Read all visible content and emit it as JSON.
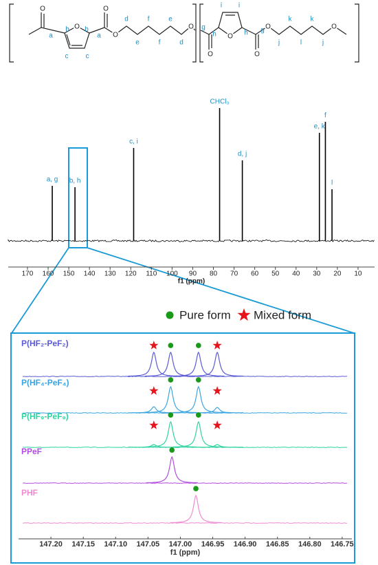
{
  "structure": {
    "labels": [
      "a",
      "b",
      "b",
      "c",
      "c",
      "a",
      "d",
      "f",
      "e",
      "e",
      "f",
      "d",
      "g",
      "i",
      "i",
      "h",
      "h",
      "g",
      "j",
      "k",
      "l",
      "k",
      "j"
    ],
    "atoms": [
      "O",
      "O",
      "O",
      "O",
      "O",
      "O",
      "O",
      "O",
      "O",
      "O"
    ]
  },
  "chart_data": [
    {
      "type": "nmr-stick",
      "xlabel": "f1 (ppm)",
      "xlim": [
        179.3,
        2
      ],
      "xticks": [
        170,
        160,
        150,
        140,
        130,
        120,
        110,
        100,
        90,
        80,
        70,
        60,
        50,
        40,
        30,
        20,
        10
      ],
      "ylim": [
        0,
        200
      ],
      "color": "#000000",
      "label_color": "#1a8fc9",
      "peaks": [
        {
          "label": "a, g",
          "position": 158,
          "height": 80
        },
        {
          "label": "b, h",
          "position": 147,
          "height": 78
        },
        {
          "label": "c, i",
          "position": 118.6,
          "height": 135
        },
        {
          "label": "CHCl₃",
          "position": 77,
          "height": 193
        },
        {
          "label": "d, j",
          "position": 66,
          "height": 117
        },
        {
          "label": "e, k",
          "position": 28.7,
          "height": 157
        },
        {
          "label": "f",
          "position": 25.8,
          "height": 173
        },
        {
          "label": "l",
          "position": 22.6,
          "height": 75
        }
      ]
    },
    {
      "type": "nmr-stack",
      "xlabel": "f1 (ppm)",
      "xlim": [
        147.25,
        146.735
      ],
      "xticks": [
        {
          "value": 147.2,
          "label": "147.20"
        },
        147.15,
        {
          "value": 147.1,
          "label": "147.10"
        },
        147.05,
        {
          "value": 147,
          "label": "147.00"
        },
        146.95,
        {
          "value": 146.9,
          "label": "146.90"
        },
        146.85,
        {
          "value": 146.8,
          "label": "146.80"
        },
        146.75
      ],
      "ylim": [
        0,
        50
      ],
      "legend": [
        {
          "label": "Pure form",
          "color": "#1a9a1a",
          "marker": "circle"
        },
        {
          "label": "Mixed form",
          "color": "#e8141c",
          "marker": "star"
        }
      ],
      "series": [
        {
          "name": "P(HF₂-PeF₂)",
          "color": "#5a5ad6",
          "peaks": [
            {
              "position": 147.041,
              "height": 35,
              "marker": "star"
            },
            {
              "position": 147.015,
              "height": 35,
              "marker": "circle"
            },
            {
              "position": 146.972,
              "height": 35,
              "marker": "circle"
            },
            {
              "position": 146.943,
              "height": 35,
              "marker": "star"
            }
          ]
        },
        {
          "name": "P(HF₄-PeF₄)",
          "color": "#3aa4e0",
          "peaks": [
            {
              "position": 147.041,
              "height": 9,
              "marker": "star"
            },
            {
              "position": 147.015,
              "height": 38,
              "marker": "circle"
            },
            {
              "position": 146.972,
              "height": 38,
              "marker": "circle"
            },
            {
              "position": 146.943,
              "height": 8,
              "marker": "star"
            }
          ]
        },
        {
          "name": "P(HF₉-PeF₉)",
          "color": "#2ed3a0",
          "peaks": [
            {
              "position": 147.041,
              "height": 4,
              "marker": "star"
            },
            {
              "position": 147.015,
              "height": 37,
              "marker": "circle"
            },
            {
              "position": 146.972,
              "height": 37,
              "marker": "circle"
            },
            {
              "position": 146.943,
              "height": 4,
              "marker": "star"
            }
          ]
        },
        {
          "name": "PPeF",
          "color": "#b04ce0",
          "peaks": [
            {
              "position": 147.013,
              "height": 38,
              "marker": "circle"
            }
          ]
        },
        {
          "name": "PHF",
          "color": "#f08ad0",
          "peaks": [
            {
              "position": 146.976,
              "height": 40,
              "marker": "circle"
            }
          ]
        }
      ]
    }
  ]
}
